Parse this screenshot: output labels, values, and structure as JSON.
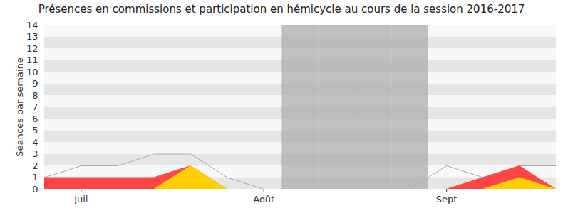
{
  "chart_data": {
    "type": "area",
    "title": "Présences en commissions et participation en hémicycle au cours de la session 2016-2017",
    "y_label": "Séances par semaine",
    "categories": [
      null,
      "Juil",
      null,
      null,
      null,
      null,
      "Août",
      null,
      null,
      null,
      null,
      "Sept",
      null,
      null,
      null
    ],
    "ylim": [
      0,
      14
    ],
    "yticks": [
      0,
      1,
      2,
      3,
      4,
      5,
      6,
      7,
      8,
      9,
      10,
      11,
      12,
      13,
      14
    ],
    "grid": true,
    "series": [
      {
        "type": "band",
        "color": "#a8a8a8",
        "values": [
          null,
          null,
          null,
          null,
          null,
          null,
          null,
          14,
          14,
          14,
          14,
          null,
          null,
          null,
          null
        ]
      },
      {
        "type": "line",
        "color": "#aaaaaa",
        "values": [
          1,
          2,
          2,
          3,
          3,
          1,
          0,
          0,
          0,
          0,
          0,
          2,
          1,
          2,
          2
        ]
      },
      {
        "type": "area",
        "color": "#ff3c3c",
        "values": [
          1,
          1,
          1,
          1,
          2,
          0,
          0,
          0,
          0,
          0,
          0,
          0,
          1,
          2,
          0
        ]
      },
      {
        "type": "area",
        "color": "#ffd700",
        "values": [
          0,
          0,
          0,
          0,
          2,
          0,
          0,
          0,
          0,
          0,
          0,
          0,
          0,
          1,
          0
        ]
      }
    ]
  }
}
